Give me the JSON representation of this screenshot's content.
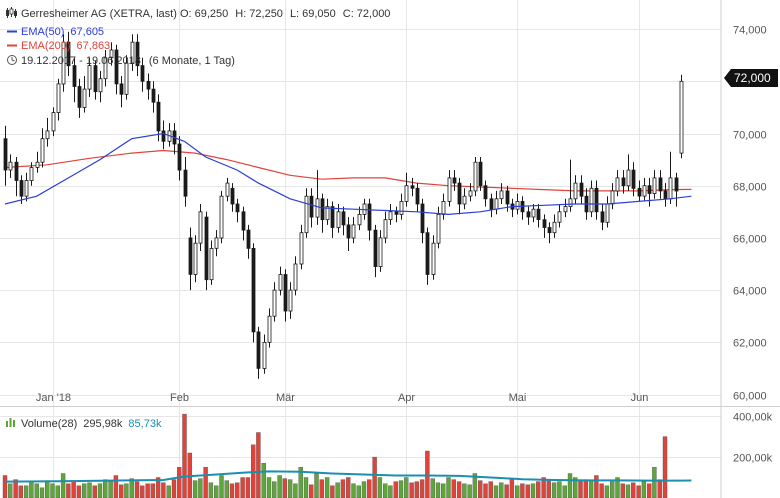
{
  "header": {
    "title": "Gerresheimer AG (XETRA, last)",
    "ohlc": {
      "o_label": "O:",
      "o": "69,250",
      "h_label": "H:",
      "h": "72,250",
      "l_label": "L:",
      "l": "69,050",
      "c_label": "C:",
      "c": "72,000"
    },
    "ema50": {
      "label": "EMA(50)",
      "value": "67,605",
      "color": "#2b3fd6"
    },
    "ema200": {
      "label": "EMA(200)",
      "value": "67,863",
      "color": "#e0433a"
    },
    "range": "19.12.2017 - 19.06.2018",
    "period": "(6 Monate, 1 Tag)"
  },
  "last_price_badge": "72,000",
  "volume_header": {
    "label": "Volume(28)",
    "value1": "295,98k",
    "value2": "85,73k",
    "value2_color": "#1a8fb0"
  },
  "chart_data": [
    {
      "type": "candlestick",
      "title": "Gerresheimer AG (XETRA, last)",
      "ylim": [
        59.6,
        75.0
      ],
      "yticks": [
        {
          "value": 60,
          "label": "60,000"
        },
        {
          "value": 62,
          "label": "62,000"
        },
        {
          "value": 64,
          "label": "64,000"
        },
        {
          "value": 66,
          "label": "66,000"
        },
        {
          "value": 68,
          "label": "68,000"
        },
        {
          "value": 70,
          "label": "70,000"
        },
        {
          "value": 72,
          "label": "72,000"
        },
        {
          "value": 74,
          "label": "74,000"
        }
      ],
      "xticks": [
        {
          "index": 9,
          "label": "Jan '18"
        },
        {
          "index": 33,
          "label": "Feb"
        },
        {
          "index": 53,
          "label": "Mär"
        },
        {
          "index": 76,
          "label": "Apr"
        },
        {
          "index": 97,
          "label": "Mai"
        },
        {
          "index": 120,
          "label": "Jun"
        }
      ],
      "grid": true,
      "up_color": "#ffffff",
      "down_color": "#1a1a1a",
      "candles": [
        [
          69.8,
          68.6,
          68.0,
          70.3
        ],
        [
          68.6,
          68.9,
          68.3,
          69.2
        ],
        [
          68.9,
          68.2,
          67.6,
          69.1
        ],
        [
          68.2,
          67.6,
          67.3,
          68.4
        ],
        [
          67.6,
          68.2,
          67.4,
          68.5
        ],
        [
          68.2,
          68.7,
          68.0,
          68.9
        ],
        [
          68.7,
          68.9,
          68.5,
          69.3
        ],
        [
          68.9,
          69.8,
          68.7,
          70.2
        ],
        [
          69.8,
          70.1,
          69.5,
          70.6
        ],
        [
          70.1,
          70.8,
          69.9,
          71.0
        ],
        [
          70.8,
          71.9,
          70.5,
          72.1
        ],
        [
          71.9,
          73.5,
          71.6,
          73.8
        ],
        [
          73.5,
          72.6,
          72.2,
          73.9
        ],
        [
          72.6,
          71.8,
          71.2,
          72.9
        ],
        [
          71.8,
          71.0,
          70.6,
          72.1
        ],
        [
          71.0,
          71.7,
          70.8,
          72.2
        ],
        [
          71.7,
          72.6,
          71.4,
          72.9
        ],
        [
          72.6,
          71.6,
          71.3,
          72.8
        ],
        [
          71.6,
          72.1,
          71.2,
          72.4
        ],
        [
          72.1,
          72.9,
          71.8,
          73.2
        ],
        [
          72.9,
          73.2,
          72.6,
          73.5
        ],
        [
          73.2,
          71.9,
          71.5,
          73.4
        ],
        [
          71.9,
          71.5,
          71.0,
          72.2
        ],
        [
          71.5,
          72.7,
          71.3,
          73.0
        ],
        [
          72.7,
          73.5,
          72.4,
          73.8
        ],
        [
          73.5,
          72.6,
          72.2,
          73.8
        ],
        [
          72.6,
          72.0,
          71.6,
          72.9
        ],
        [
          72.0,
          71.7,
          71.3,
          72.3
        ],
        [
          71.7,
          71.2,
          70.8,
          72.0
        ],
        [
          71.2,
          70.1,
          69.7,
          71.5
        ],
        [
          70.1,
          69.7,
          69.4,
          70.5
        ],
        [
          69.7,
          70.1,
          69.5,
          70.4
        ],
        [
          70.1,
          69.6,
          69.2,
          70.4
        ],
        [
          69.6,
          68.6,
          68.2,
          69.9
        ],
        [
          68.6,
          67.6,
          67.2,
          69.1
        ],
        [
          66.0,
          64.6,
          64.0,
          66.4
        ],
        [
          64.6,
          65.8,
          64.3,
          66.1
        ],
        [
          65.8,
          67.0,
          65.5,
          67.3
        ],
        [
          66.8,
          64.4,
          64.0,
          67.0
        ],
        [
          64.4,
          65.6,
          64.2,
          65.9
        ],
        [
          65.6,
          66.0,
          65.3,
          66.3
        ],
        [
          66.0,
          67.6,
          65.8,
          67.8
        ],
        [
          67.6,
          68.1,
          67.4,
          68.3
        ],
        [
          67.9,
          67.3,
          67.0,
          68.1
        ],
        [
          67.3,
          67.0,
          66.6,
          67.5
        ],
        [
          67.0,
          66.3,
          65.9,
          67.2
        ],
        [
          66.3,
          65.6,
          65.2,
          66.5
        ],
        [
          65.6,
          62.4,
          62.0,
          65.8
        ],
        [
          62.4,
          61.0,
          60.6,
          62.6
        ],
        [
          61.0,
          62.0,
          60.8,
          62.3
        ],
        [
          62.0,
          63.0,
          61.8,
          63.3
        ],
        [
          63.0,
          64.0,
          62.8,
          64.3
        ],
        [
          64.0,
          64.6,
          63.8,
          64.9
        ],
        [
          64.6,
          63.2,
          62.8,
          64.8
        ],
        [
          63.2,
          64.0,
          62.9,
          64.3
        ],
        [
          64.0,
          65.0,
          63.8,
          65.3
        ],
        [
          65.0,
          66.2,
          64.8,
          66.5
        ],
        [
          66.2,
          67.6,
          66.0,
          67.9
        ],
        [
          67.6,
          66.8,
          66.4,
          67.9
        ],
        [
          66.8,
          67.5,
          66.5,
          68.6
        ],
        [
          67.5,
          66.7,
          66.2,
          67.7
        ],
        [
          66.7,
          67.2,
          66.5,
          67.5
        ],
        [
          67.2,
          66.4,
          66.0,
          67.4
        ],
        [
          66.4,
          67.0,
          66.2,
          67.3
        ],
        [
          67.0,
          66.5,
          66.1,
          67.2
        ],
        [
          66.5,
          66.0,
          65.5,
          66.8
        ],
        [
          66.0,
          66.5,
          65.8,
          66.8
        ],
        [
          66.5,
          66.9,
          66.3,
          67.2
        ],
        [
          66.9,
          67.3,
          66.7,
          67.5
        ],
        [
          67.3,
          66.3,
          65.9,
          67.5
        ],
        [
          66.3,
          64.9,
          64.5,
          66.5
        ],
        [
          64.9,
          66.0,
          64.7,
          66.3
        ],
        [
          66.0,
          66.7,
          65.8,
          67.0
        ],
        [
          66.7,
          67.0,
          66.5,
          67.3
        ],
        [
          67.0,
          66.9,
          66.6,
          67.2
        ],
        [
          66.9,
          67.4,
          66.7,
          67.7
        ],
        [
          67.4,
          68.0,
          67.2,
          68.5
        ],
        [
          68.0,
          67.9,
          67.6,
          68.3
        ],
        [
          67.9,
          67.3,
          67.0,
          68.1
        ],
        [
          67.3,
          66.2,
          65.8,
          67.5
        ],
        [
          66.2,
          64.6,
          64.2,
          66.4
        ],
        [
          64.6,
          65.8,
          64.4,
          66.1
        ],
        [
          65.8,
          66.9,
          65.6,
          67.2
        ],
        [
          66.9,
          67.4,
          66.7,
          67.7
        ],
        [
          67.4,
          68.3,
          67.2,
          68.6
        ],
        [
          68.3,
          68.1,
          67.8,
          68.6
        ],
        [
          68.1,
          67.3,
          66.9,
          68.3
        ],
        [
          67.3,
          67.6,
          67.1,
          67.9
        ],
        [
          67.6,
          67.8,
          67.4,
          68.1
        ],
        [
          67.8,
          68.9,
          67.6,
          69.1
        ],
        [
          68.9,
          68.0,
          67.8,
          69.1
        ],
        [
          68.0,
          67.5,
          67.2,
          68.2
        ],
        [
          67.5,
          67.1,
          66.8,
          67.7
        ],
        [
          67.1,
          67.5,
          66.9,
          67.8
        ],
        [
          67.5,
          67.8,
          67.3,
          68.1
        ],
        [
          67.8,
          67.3,
          67.0,
          68.0
        ],
        [
          67.3,
          67.1,
          66.8,
          67.5
        ],
        [
          67.1,
          67.4,
          66.9,
          67.7
        ],
        [
          67.4,
          67.0,
          66.7,
          67.6
        ],
        [
          67.0,
          66.8,
          66.5,
          67.2
        ],
        [
          66.8,
          67.1,
          66.6,
          67.3
        ],
        [
          67.1,
          66.7,
          66.4,
          67.3
        ],
        [
          66.7,
          66.4,
          66.0,
          66.9
        ],
        [
          66.4,
          66.2,
          65.8,
          66.6
        ],
        [
          66.2,
          66.6,
          66.0,
          66.9
        ],
        [
          66.6,
          67.0,
          66.4,
          67.3
        ],
        [
          67.0,
          67.2,
          66.8,
          67.5
        ],
        [
          67.2,
          67.5,
          67.0,
          69.0
        ],
        [
          67.5,
          68.1,
          67.3,
          68.4
        ],
        [
          68.1,
          67.6,
          67.3,
          68.4
        ],
        [
          67.6,
          67.0,
          66.7,
          67.9
        ],
        [
          67.0,
          67.9,
          66.8,
          68.2
        ],
        [
          67.9,
          67.0,
          66.7,
          68.2
        ],
        [
          67.0,
          66.6,
          66.3,
          67.3
        ],
        [
          66.6,
          67.3,
          66.4,
          67.6
        ],
        [
          67.3,
          67.8,
          67.1,
          68.1
        ],
        [
          67.8,
          68.3,
          67.6,
          68.6
        ],
        [
          68.3,
          68.0,
          67.7,
          68.6
        ],
        [
          68.0,
          68.6,
          67.8,
          69.2
        ],
        [
          68.6,
          67.9,
          67.6,
          68.9
        ],
        [
          67.9,
          67.6,
          67.4,
          68.2
        ],
        [
          67.6,
          68.0,
          67.4,
          68.3
        ],
        [
          68.0,
          67.7,
          67.2,
          68.3
        ],
        [
          67.7,
          68.3,
          67.5,
          68.6
        ],
        [
          68.3,
          67.8,
          67.5,
          68.6
        ],
        [
          67.8,
          67.5,
          67.2,
          68.1
        ],
        [
          67.5,
          68.3,
          67.3,
          69.3
        ],
        [
          68.3,
          67.8,
          67.2,
          68.5
        ],
        [
          69.25,
          72.0,
          69.05,
          72.25
        ]
      ],
      "series": [
        {
          "name": "EMA(50)",
          "color": "#2b3fd6",
          "points": [
            [
              0,
              67.3
            ],
            [
              6,
              67.6
            ],
            [
              12,
              68.3
            ],
            [
              18,
              69.0
            ],
            [
              24,
              69.8
            ],
            [
              30,
              70.0
            ],
            [
              34,
              69.7
            ],
            [
              38,
              69.1
            ],
            [
              44,
              68.6
            ],
            [
              48,
              68.1
            ],
            [
              54,
              67.5
            ],
            [
              60,
              67.15
            ],
            [
              66,
              67.1
            ],
            [
              72,
              67.05
            ],
            [
              78,
              67.0
            ],
            [
              84,
              66.9
            ],
            [
              90,
              67.0
            ],
            [
              96,
              67.2
            ],
            [
              102,
              67.25
            ],
            [
              108,
              67.3
            ],
            [
              114,
              67.3
            ],
            [
              120,
              67.4
            ],
            [
              126,
              67.5
            ],
            [
              130,
              67.6
            ]
          ]
        },
        {
          "name": "EMA(200)",
          "color": "#e0433a",
          "points": [
            [
              0,
              68.7
            ],
            [
              8,
              68.8
            ],
            [
              16,
              69.05
            ],
            [
              24,
              69.25
            ],
            [
              30,
              69.35
            ],
            [
              36,
              69.25
            ],
            [
              42,
              69.0
            ],
            [
              48,
              68.7
            ],
            [
              54,
              68.4
            ],
            [
              60,
              68.25
            ],
            [
              66,
              68.3
            ],
            [
              72,
              68.3
            ],
            [
              78,
              68.1
            ],
            [
              84,
              68.0
            ],
            [
              90,
              67.95
            ],
            [
              96,
              67.9
            ],
            [
              102,
              67.85
            ],
            [
              108,
              67.8
            ],
            [
              114,
              67.8
            ],
            [
              120,
              67.8
            ],
            [
              126,
              67.85
            ],
            [
              130,
              67.86
            ]
          ]
        }
      ]
    },
    {
      "type": "bar",
      "title": "Volume(28)",
      "ylim": [
        0,
        440
      ],
      "yticks": [
        {
          "value": 200,
          "label": "200,00k"
        },
        {
          "value": 400,
          "label": "400,00k"
        }
      ],
      "up_color": "#5ea63a",
      "down_color": "#e0433a",
      "values": [
        110,
        70,
        90,
        60,
        60,
        80,
        70,
        50,
        85,
        70,
        60,
        120,
        70,
        80,
        60,
        70,
        75,
        60,
        70,
        90,
        80,
        110,
        65,
        70,
        95,
        80,
        60,
        70,
        70,
        100,
        75,
        60,
        90,
        150,
        410,
        220,
        85,
        95,
        150,
        75,
        60,
        110,
        85,
        70,
        75,
        100,
        100,
        260,
        320,
        170,
        100,
        80,
        110,
        95,
        90,
        70,
        150,
        100,
        65,
        120,
        90,
        100,
        60,
        75,
        90,
        100,
        70,
        60,
        80,
        90,
        200,
        100,
        70,
        60,
        80,
        85,
        100,
        75,
        80,
        90,
        230,
        95,
        75,
        70,
        100,
        90,
        80,
        70,
        65,
        120,
        85,
        70,
        80,
        60,
        75,
        65,
        90,
        60,
        70,
        65,
        70,
        80,
        100,
        90,
        75,
        80,
        60,
        120,
        100,
        85,
        90,
        80,
        110,
        70,
        60,
        80,
        100,
        70,
        65,
        75,
        60,
        80,
        70,
        150,
        90,
        300
      ],
      "series": [
        {
          "name": "Volume(28)",
          "color": "#1a8fb0",
          "points": [
            [
              0,
              80
            ],
            [
              10,
              82
            ],
            [
              20,
              85
            ],
            [
              30,
              88
            ],
            [
              34,
              105
            ],
            [
              40,
              115
            ],
            [
              46,
              125
            ],
            [
              50,
              130
            ],
            [
              56,
              128
            ],
            [
              62,
              120
            ],
            [
              68,
              115
            ],
            [
              74,
              110
            ],
            [
              80,
              110
            ],
            [
              86,
              108
            ],
            [
              92,
              100
            ],
            [
              98,
              92
            ],
            [
              104,
              88
            ],
            [
              110,
              86
            ],
            [
              116,
              86
            ],
            [
              122,
              85
            ],
            [
              128,
              85
            ],
            [
              130,
              85.7
            ]
          ]
        }
      ]
    }
  ]
}
